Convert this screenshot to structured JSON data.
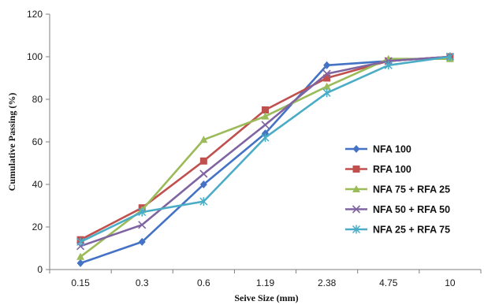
{
  "chart_data": {
    "type": "line",
    "categories": [
      "0.15",
      "0.3",
      "0.6",
      "1.19",
      "2.38",
      "4.75",
      "10"
    ],
    "xlabel": "Seive Size (mm)",
    "ylabel": "Cumulative  Passing (%)",
    "ylim": [
      0,
      120
    ],
    "yticks": [
      "0",
      "20",
      "40",
      "60",
      "80",
      "100",
      "120"
    ],
    "grid": false,
    "legend_position": "right",
    "series": [
      {
        "name": "NFA 100",
        "color": "#4472C4",
        "marker": "diamond",
        "values": [
          3,
          13,
          40,
          64,
          96,
          98,
          100
        ]
      },
      {
        "name": "RFA 100",
        "color": "#C0504D",
        "marker": "square",
        "values": [
          14,
          29,
          51,
          75,
          90,
          98,
          100
        ]
      },
      {
        "name": "NFA 75 + RFA 25",
        "color": "#9BBB59",
        "marker": "triangle",
        "values": [
          6,
          28,
          61,
          72,
          86,
          99,
          99
        ]
      },
      {
        "name": "NFA 50 + RFA 50",
        "color": "#8064A2",
        "marker": "x",
        "values": [
          11,
          21,
          45,
          68,
          92,
          98,
          100
        ]
      },
      {
        "name": "NFA 25 + RFA 75",
        "color": "#4BACC6",
        "marker": "asterisk",
        "values": [
          13,
          27,
          32,
          62,
          83,
          96,
          100
        ]
      }
    ]
  }
}
